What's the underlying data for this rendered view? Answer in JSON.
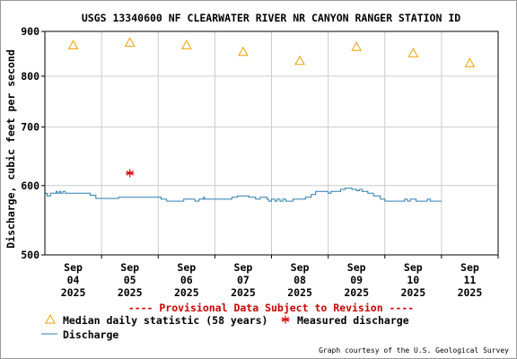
{
  "chart_data": {
    "type": "line",
    "title": "USGS 13340600 NF CLEARWATER RIVER NR CANYON RANGER STATION ID",
    "ylabel": "Discharge, cubic feet per second",
    "xlabel": "",
    "ylim": [
      500,
      900
    ],
    "y_scale": "log",
    "y_ticks": [
      500,
      600,
      700,
      800,
      900
    ],
    "grid": true,
    "x_ticks": [
      {
        "month": "Sep",
        "day": "04",
        "year": "2025"
      },
      {
        "month": "Sep",
        "day": "05",
        "year": "2025"
      },
      {
        "month": "Sep",
        "day": "06",
        "year": "2025"
      },
      {
        "month": "Sep",
        "day": "07",
        "year": "2025"
      },
      {
        "month": "Sep",
        "day": "08",
        "year": "2025"
      },
      {
        "month": "Sep",
        "day": "09",
        "year": "2025"
      },
      {
        "month": "Sep",
        "day": "10",
        "year": "2025"
      },
      {
        "month": "Sep",
        "day": "11",
        "year": "2025"
      }
    ],
    "x_range_days": [
      3.5,
      11.5
    ],
    "median": {
      "name": "Median daily statistic (58 years)",
      "color": "#f0a000",
      "points": [
        {
          "day": 4,
          "value": 868
        },
        {
          "day": 5,
          "value": 874
        },
        {
          "day": 6,
          "value": 868
        },
        {
          "day": 7,
          "value": 853
        },
        {
          "day": 8,
          "value": 833
        },
        {
          "day": 9,
          "value": 864
        },
        {
          "day": 10,
          "value": 850
        },
        {
          "day": 11,
          "value": 828
        }
      ]
    },
    "measured": {
      "name": "Measured discharge",
      "color": "#dd0000",
      "points": [
        {
          "day": 5.0,
          "value": 620
        }
      ]
    },
    "discharge": {
      "name": "Discharge",
      "color": "#2a7fb0",
      "points": [
        {
          "day": 3.5,
          "value": 588
        },
        {
          "day": 3.54,
          "value": 588
        },
        {
          "day": 3.54,
          "value": 584
        },
        {
          "day": 3.6,
          "value": 584
        },
        {
          "day": 3.6,
          "value": 588
        },
        {
          "day": 3.7,
          "value": 588
        },
        {
          "day": 3.7,
          "value": 591
        },
        {
          "day": 3.72,
          "value": 591
        },
        {
          "day": 3.72,
          "value": 588
        },
        {
          "day": 3.76,
          "value": 588
        },
        {
          "day": 3.76,
          "value": 591
        },
        {
          "day": 3.78,
          "value": 591
        },
        {
          "day": 3.78,
          "value": 588
        },
        {
          "day": 3.82,
          "value": 588
        },
        {
          "day": 3.82,
          "value": 591
        },
        {
          "day": 3.86,
          "value": 591
        },
        {
          "day": 3.86,
          "value": 588
        },
        {
          "day": 4.3,
          "value": 588
        },
        {
          "day": 4.3,
          "value": 585
        },
        {
          "day": 4.4,
          "value": 585
        },
        {
          "day": 4.4,
          "value": 580
        },
        {
          "day": 4.8,
          "value": 580
        },
        {
          "day": 4.8,
          "value": 582
        },
        {
          "day": 5.55,
          "value": 582
        },
        {
          "day": 5.55,
          "value": 579
        },
        {
          "day": 5.65,
          "value": 579
        },
        {
          "day": 5.65,
          "value": 576
        },
        {
          "day": 5.95,
          "value": 576
        },
        {
          "day": 5.95,
          "value": 579
        },
        {
          "day": 6.15,
          "value": 579
        },
        {
          "day": 6.15,
          "value": 576
        },
        {
          "day": 6.22,
          "value": 576
        },
        {
          "day": 6.22,
          "value": 579
        },
        {
          "day": 6.3,
          "value": 579
        },
        {
          "day": 6.3,
          "value": 582
        },
        {
          "day": 6.32,
          "value": 582
        },
        {
          "day": 6.32,
          "value": 579
        },
        {
          "day": 6.8,
          "value": 579
        },
        {
          "day": 6.8,
          "value": 582
        },
        {
          "day": 6.9,
          "value": 582
        },
        {
          "day": 6.9,
          "value": 584
        },
        {
          "day": 7.1,
          "value": 584
        },
        {
          "day": 7.1,
          "value": 582
        },
        {
          "day": 7.22,
          "value": 582
        },
        {
          "day": 7.22,
          "value": 579
        },
        {
          "day": 7.3,
          "value": 579
        },
        {
          "day": 7.3,
          "value": 582
        },
        {
          "day": 7.42,
          "value": 582
        },
        {
          "day": 7.42,
          "value": 579
        },
        {
          "day": 7.45,
          "value": 579
        },
        {
          "day": 7.45,
          "value": 576
        },
        {
          "day": 7.5,
          "value": 576
        },
        {
          "day": 7.5,
          "value": 579
        },
        {
          "day": 7.56,
          "value": 579
        },
        {
          "day": 7.56,
          "value": 576
        },
        {
          "day": 7.6,
          "value": 576
        },
        {
          "day": 7.6,
          "value": 579
        },
        {
          "day": 7.65,
          "value": 579
        },
        {
          "day": 7.65,
          "value": 576
        },
        {
          "day": 7.7,
          "value": 576
        },
        {
          "day": 7.7,
          "value": 579
        },
        {
          "day": 7.75,
          "value": 579
        },
        {
          "day": 7.75,
          "value": 576
        },
        {
          "day": 7.88,
          "value": 576
        },
        {
          "day": 7.88,
          "value": 579
        },
        {
          "day": 8.1,
          "value": 579
        },
        {
          "day": 8.1,
          "value": 582
        },
        {
          "day": 8.2,
          "value": 582
        },
        {
          "day": 8.2,
          "value": 586
        },
        {
          "day": 8.28,
          "value": 586
        },
        {
          "day": 8.28,
          "value": 591
        },
        {
          "day": 8.5,
          "value": 591
        },
        {
          "day": 8.5,
          "value": 588
        },
        {
          "day": 8.55,
          "value": 588
        },
        {
          "day": 8.55,
          "value": 591
        },
        {
          "day": 8.72,
          "value": 591
        },
        {
          "day": 8.72,
          "value": 594
        },
        {
          "day": 8.8,
          "value": 594
        },
        {
          "day": 8.8,
          "value": 596
        },
        {
          "day": 8.92,
          "value": 596
        },
        {
          "day": 8.92,
          "value": 594
        },
        {
          "day": 9.0,
          "value": 594
        },
        {
          "day": 9.0,
          "value": 592
        },
        {
          "day": 9.05,
          "value": 592
        },
        {
          "day": 9.05,
          "value": 594
        },
        {
          "day": 9.1,
          "value": 594
        },
        {
          "day": 9.1,
          "value": 591
        },
        {
          "day": 9.2,
          "value": 591
        },
        {
          "day": 9.2,
          "value": 588
        },
        {
          "day": 9.3,
          "value": 588
        },
        {
          "day": 9.3,
          "value": 584
        },
        {
          "day": 9.42,
          "value": 584
        },
        {
          "day": 9.42,
          "value": 579
        },
        {
          "day": 9.5,
          "value": 579
        },
        {
          "day": 9.5,
          "value": 576
        },
        {
          "day": 9.85,
          "value": 576
        },
        {
          "day": 9.85,
          "value": 579
        },
        {
          "day": 9.9,
          "value": 579
        },
        {
          "day": 9.9,
          "value": 576
        },
        {
          "day": 9.95,
          "value": 576
        },
        {
          "day": 9.95,
          "value": 579
        },
        {
          "day": 10.05,
          "value": 579
        },
        {
          "day": 10.05,
          "value": 576
        },
        {
          "day": 10.25,
          "value": 576
        },
        {
          "day": 10.25,
          "value": 579
        },
        {
          "day": 10.3,
          "value": 579
        },
        {
          "day": 10.3,
          "value": 576
        },
        {
          "day": 10.5,
          "value": 576
        }
      ]
    }
  },
  "provisional_note": "---- Provisional Data Subject to Revision ----",
  "legend": {
    "median_label": "Median daily statistic (58 years)",
    "measured_label": "Measured discharge",
    "discharge_label": "Discharge"
  },
  "courtesy": "Graph courtesy of the U.S. Geological Survey",
  "colors": {
    "grid": "#cccccc",
    "axis": "#000000",
    "provisional": "#cc0000"
  }
}
